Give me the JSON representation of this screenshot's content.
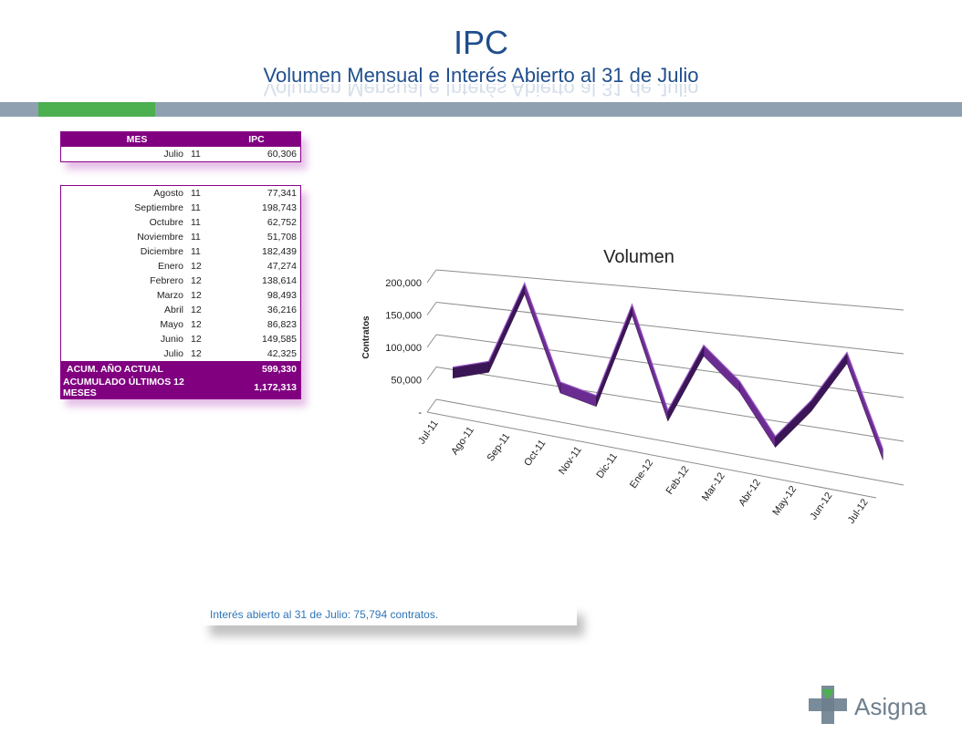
{
  "header": {
    "title": "IPC",
    "subtitle": "Volumen Mensual e Interés Abierto al 31 de Julio"
  },
  "table_top": {
    "columns": [
      "MES",
      "IPC"
    ],
    "rows": [
      {
        "month": "Julio",
        "year": "11",
        "value": "60,306"
      }
    ]
  },
  "table_months": {
    "rows": [
      {
        "month": "Agosto",
        "year": "11",
        "value": "77,341"
      },
      {
        "month": "Septiembre",
        "year": "11",
        "value": "198,743"
      },
      {
        "month": "Octubre",
        "year": "11",
        "value": "62,752"
      },
      {
        "month": "Noviembre",
        "year": "11",
        "value": "51,708"
      },
      {
        "month": "Diciembre",
        "year": "11",
        "value": "182,439"
      },
      {
        "month": "Enero",
        "year": "12",
        "value": "47,274"
      },
      {
        "month": "Febrero",
        "year": "12",
        "value": "138,614"
      },
      {
        "month": "Marzo",
        "year": "12",
        "value": "98,493"
      },
      {
        "month": "Abril",
        "year": "12",
        "value": "36,216"
      },
      {
        "month": "Mayo",
        "year": "12",
        "value": "86,823"
      },
      {
        "month": "Junio",
        "year": "12",
        "value": "149,585"
      },
      {
        "month": "Julio",
        "year": "12",
        "value": "42,325"
      }
    ],
    "totals": [
      {
        "label": "ACUM. AÑO ACTUAL",
        "value": "599,330"
      },
      {
        "label": "ACUMULADO ÚLTIMOS 12 MESES",
        "value": "1,172,313"
      }
    ]
  },
  "note": {
    "text": "Interés abierto al 31 de Julio:  75,794 contratos."
  },
  "logo": {
    "text": "Asigna"
  },
  "colors": {
    "purple": "#800080",
    "ribbon": "#6b2c91",
    "ribbon_dark": "#3b1657",
    "title_blue": "#1f4e8c"
  },
  "chart_data": {
    "type": "line",
    "title": "Volumen",
    "xlabel": "",
    "ylabel": "Contratos",
    "categories": [
      "Jul-11",
      "Ago-11",
      "Sep-11",
      "Oct-11",
      "Nov-11",
      "Dic-11",
      "Ene-12",
      "Feb-12",
      "Mar-12",
      "Abr-12",
      "May-12",
      "Jun-12",
      "Jul-12"
    ],
    "values": [
      60306,
      77341,
      198743,
      62752,
      51708,
      182439,
      47274,
      138614,
      98493,
      36216,
      86823,
      149585,
      42325
    ],
    "yticks": [
      "-",
      "50,000",
      "100,000",
      "150,000",
      "200,000"
    ],
    "ylim": [
      0,
      200000
    ],
    "grid": true,
    "style": "3d-ribbon"
  }
}
